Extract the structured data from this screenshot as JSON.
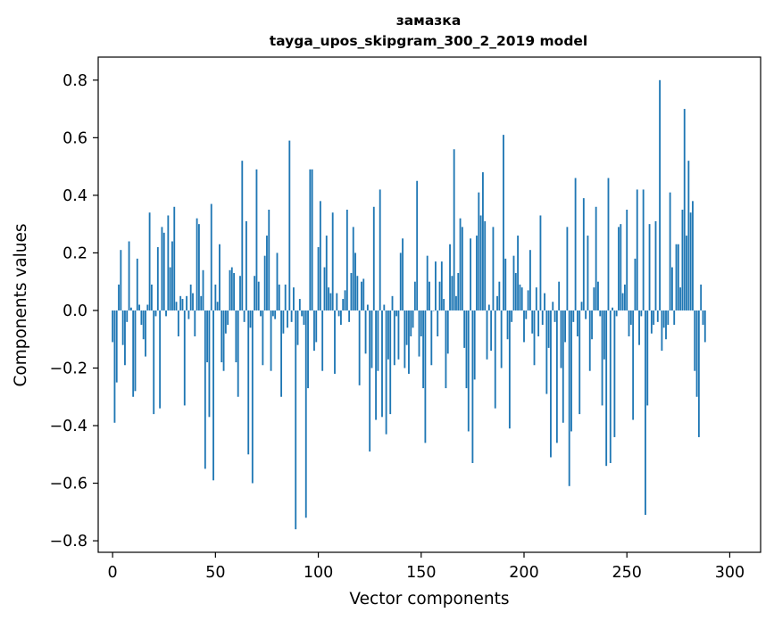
{
  "chart_data": {
    "type": "bar",
    "title": "замазка",
    "subtitle": "tayga_upos_skipgram_300_2_2019 model",
    "xlabel": "Vector components",
    "ylabel": "Components values",
    "xlim": [
      -7,
      315
    ],
    "ylim": [
      -0.84,
      0.88
    ],
    "xticks": [
      0,
      50,
      100,
      150,
      200,
      250,
      300
    ],
    "yticks": [
      -0.8,
      -0.6,
      -0.4,
      -0.2,
      0.0,
      0.2,
      0.4,
      0.6,
      0.8
    ],
    "ytick_labels": [
      "−0.8",
      "−0.6",
      "−0.4",
      "−0.2",
      "0.0",
      "0.2",
      "0.4",
      "0.6",
      "0.8"
    ],
    "bar_color": "#1f77b4",
    "grid": false,
    "values": [
      -0.11,
      -0.39,
      -0.25,
      0.09,
      0.21,
      -0.12,
      -0.19,
      -0.04,
      0.24,
      0.01,
      -0.3,
      -0.28,
      0.18,
      0.02,
      -0.05,
      -0.1,
      -0.16,
      0.02,
      0.34,
      0.09,
      -0.36,
      -0.02,
      0.22,
      -0.34,
      0.29,
      0.27,
      -0.02,
      0.33,
      0.15,
      0.24,
      0.36,
      0.03,
      -0.09,
      0.05,
      0.04,
      -0.33,
      0.05,
      -0.03,
      0.09,
      0.06,
      -0.09,
      0.32,
      0.3,
      0.05,
      0.14,
      -0.55,
      -0.18,
      -0.37,
      0.37,
      -0.59,
      0.09,
      0.03,
      0.23,
      -0.18,
      -0.21,
      -0.08,
      -0.05,
      0.14,
      0.15,
      0.13,
      -0.18,
      -0.3,
      0.12,
      0.52,
      -0.04,
      0.31,
      -0.5,
      -0.06,
      -0.6,
      0.12,
      0.49,
      0.1,
      -0.02,
      -0.19,
      0.19,
      0.26,
      0.35,
      -0.21,
      -0.02,
      -0.03,
      0.2,
      0.09,
      -0.3,
      -0.08,
      0.09,
      -0.06,
      0.59,
      -0.04,
      0.08,
      -0.76,
      -0.12,
      0.04,
      -0.02,
      -0.05,
      -0.72,
      -0.27,
      0.49,
      0.49,
      -0.14,
      -0.11,
      0.22,
      0.38,
      -0.21,
      0.15,
      0.26,
      0.08,
      0.06,
      0.34,
      -0.22,
      0.06,
      -0.02,
      -0.05,
      0.04,
      0.07,
      0.35,
      -0.04,
      0.13,
      0.29,
      0.2,
      0.12,
      -0.26,
      0.1,
      0.11,
      -0.15,
      0.02,
      -0.49,
      -0.2,
      0.36,
      -0.38,
      -0.21,
      0.42,
      -0.37,
      0.02,
      -0.43,
      -0.17,
      -0.36,
      0.05,
      -0.19,
      -0.02,
      -0.17,
      0.2,
      0.25,
      -0.2,
      -0.12,
      -0.22,
      -0.09,
      -0.06,
      0.1,
      0.45,
      -0.16,
      -0.09,
      -0.27,
      -0.46,
      0.19,
      0.1,
      -0.19,
      0.0,
      0.17,
      -0.09,
      0.1,
      0.17,
      0.04,
      -0.27,
      -0.15,
      0.23,
      0.12,
      0.56,
      0.05,
      0.13,
      0.32,
      0.29,
      -0.13,
      -0.27,
      -0.42,
      0.25,
      -0.53,
      -0.24,
      0.26,
      0.41,
      0.33,
      0.48,
      0.31,
      -0.17,
      0.02,
      -0.14,
      0.29,
      -0.34,
      0.05,
      0.1,
      -0.2,
      0.61,
      0.18,
      -0.1,
      -0.41,
      -0.04,
      0.19,
      0.13,
      0.26,
      0.09,
      0.08,
      -0.11,
      -0.03,
      0.07,
      0.21,
      -0.08,
      -0.19,
      0.08,
      -0.09,
      0.33,
      -0.05,
      0.06,
      -0.29,
      -0.13,
      -0.51,
      0.03,
      -0.04,
      -0.46,
      0.1,
      -0.2,
      -0.39,
      -0.11,
      0.29,
      -0.61,
      -0.42,
      -0.04,
      0.46,
      -0.09,
      -0.36,
      0.03,
      0.39,
      -0.03,
      0.26,
      -0.21,
      -0.1,
      0.08,
      0.36,
      0.1,
      -0.02,
      -0.33,
      -0.17,
      -0.54,
      0.46,
      -0.53,
      0.01,
      -0.44,
      -0.02,
      0.29,
      0.3,
      0.06,
      0.09,
      0.35,
      -0.09,
      -0.05,
      -0.38,
      0.18,
      0.42,
      -0.12,
      -0.02,
      0.42,
      -0.71,
      -0.33,
      0.3,
      -0.08,
      -0.05,
      0.31,
      -0.04,
      0.8,
      -0.14,
      -0.06,
      -0.1,
      -0.05,
      0.41,
      0.15,
      -0.05,
      0.23,
      0.23,
      0.08,
      0.35,
      0.7,
      0.26,
      0.52,
      0.34,
      0.38,
      -0.21,
      -0.3,
      -0.44,
      0.09,
      -0.05,
      -0.11
    ]
  }
}
